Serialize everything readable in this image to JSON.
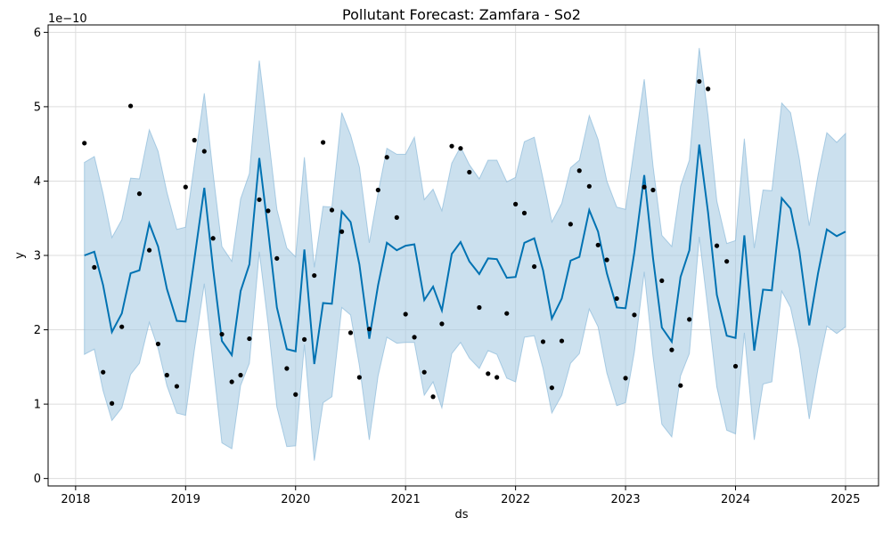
{
  "chart_data": {
    "type": "line",
    "title": "Pollutant Forecast: Zamfara - So2",
    "xlabel": "ds",
    "ylabel": "y",
    "y_scale_label": "1e−10",
    "xlim": [
      2017.75,
      2025.3
    ],
    "ylim": [
      -0.1,
      6.1
    ],
    "x_ticks": [
      2018,
      2019,
      2020,
      2021,
      2022,
      2023,
      2024,
      2025
    ],
    "x_tick_labels": [
      "2018",
      "2019",
      "2020",
      "2021",
      "2022",
      "2023",
      "2024",
      "2025"
    ],
    "y_ticks": [
      0,
      1,
      2,
      3,
      4,
      5,
      6
    ],
    "y_tick_labels": [
      "0",
      "1",
      "2",
      "3",
      "4",
      "5",
      "6"
    ],
    "grid": true,
    "colors": {
      "forecast": "#0072B2",
      "band": "#A9CCE3",
      "band_edge": "#7FB2D5",
      "actual": "#000000",
      "grid": "#dddddd"
    },
    "forecast": {
      "x": [
        2018.08,
        2018.17,
        2018.25,
        2018.33,
        2018.42,
        2018.5,
        2018.58,
        2018.67,
        2018.75,
        2018.83,
        2018.92,
        2019.0,
        2019.08,
        2019.17,
        2019.25,
        2019.33,
        2019.42,
        2019.5,
        2019.58,
        2019.67,
        2019.75,
        2019.83,
        2019.92,
        2020.0,
        2020.08,
        2020.17,
        2020.25,
        2020.33,
        2020.42,
        2020.5,
        2020.58,
        2020.67,
        2020.75,
        2020.83,
        2020.92,
        2021.0,
        2021.08,
        2021.17,
        2021.25,
        2021.33,
        2021.42,
        2021.5,
        2021.58,
        2021.67,
        2021.75,
        2021.83,
        2021.92,
        2022.0,
        2022.08,
        2022.17,
        2022.25,
        2022.33,
        2022.42,
        2022.5,
        2022.58,
        2022.67,
        2022.75,
        2022.83,
        2022.92,
        2023.0,
        2023.08,
        2023.17,
        2023.25,
        2023.33,
        2023.42,
        2023.5,
        2023.58,
        2023.67,
        2023.75,
        2023.83,
        2023.92,
        2024.0,
        2024.08,
        2024.17,
        2024.25,
        2024.33,
        2024.42,
        2024.5,
        2024.58,
        2024.67,
        2024.75,
        2024.83,
        2024.92,
        2025.0
      ],
      "yhat": [
        3.0,
        3.05,
        2.6,
        1.97,
        2.22,
        2.76,
        2.8,
        3.43,
        3.12,
        2.55,
        2.12,
        2.11,
        2.95,
        3.91,
        2.82,
        1.85,
        1.66,
        2.52,
        2.88,
        4.31,
        3.34,
        2.3,
        1.74,
        1.71,
        3.08,
        1.54,
        2.36,
        2.35,
        3.59,
        3.45,
        2.88,
        1.88,
        2.6,
        3.17,
        3.07,
        3.13,
        3.15,
        2.4,
        2.58,
        2.26,
        3.02,
        3.18,
        2.92,
        2.75,
        2.96,
        2.95,
        2.7,
        2.71,
        3.17,
        3.23,
        2.8,
        2.15,
        2.42,
        2.93,
        2.98,
        3.61,
        3.32,
        2.76,
        2.3,
        2.29,
        3.04,
        4.08,
        2.96,
        2.03,
        1.84,
        2.71,
        3.07,
        4.49,
        3.58,
        2.47,
        1.92,
        1.89,
        3.27,
        1.72,
        2.54,
        2.53,
        3.77,
        3.63,
        3.06,
        2.06,
        2.76,
        3.35,
        3.26,
        3.32
      ],
      "yhat_lower": [
        1.67,
        1.74,
        1.18,
        0.78,
        0.95,
        1.4,
        1.55,
        2.1,
        1.75,
        1.25,
        0.88,
        0.85,
        1.73,
        2.62,
        1.54,
        0.48,
        0.4,
        1.25,
        1.55,
        3.05,
        2.08,
        0.96,
        0.43,
        0.44,
        1.8,
        0.24,
        1.02,
        1.1,
        2.3,
        2.2,
        1.52,
        0.52,
        1.38,
        1.9,
        1.82,
        1.83,
        1.83,
        1.12,
        1.3,
        0.95,
        1.68,
        1.83,
        1.62,
        1.48,
        1.72,
        1.67,
        1.35,
        1.3,
        1.9,
        1.92,
        1.48,
        0.88,
        1.12,
        1.55,
        1.68,
        2.28,
        2.04,
        1.42,
        0.98,
        1.02,
        1.7,
        2.78,
        1.64,
        0.73,
        0.56,
        1.38,
        1.68,
        3.25,
        2.26,
        1.23,
        0.65,
        0.6,
        1.96,
        0.52,
        1.27,
        1.3,
        2.52,
        2.3,
        1.75,
        0.8,
        1.48,
        2.05,
        1.95,
        2.04
      ],
      "yhat_upper": [
        4.25,
        4.33,
        3.83,
        3.24,
        3.48,
        4.04,
        4.03,
        4.69,
        4.4,
        3.85,
        3.35,
        3.38,
        4.23,
        5.18,
        4.1,
        3.12,
        2.92,
        3.76,
        4.1,
        5.62,
        4.64,
        3.62,
        3.1,
        2.98,
        4.32,
        2.84,
        3.66,
        3.65,
        4.92,
        4.62,
        4.19,
        3.17,
        3.84,
        4.44,
        4.36,
        4.36,
        4.59,
        3.75,
        3.89,
        3.6,
        4.24,
        4.46,
        4.22,
        4.03,
        4.28,
        4.28,
        3.99,
        4.05,
        4.53,
        4.59,
        4.03,
        3.45,
        3.7,
        4.18,
        4.28,
        4.88,
        4.56,
        4.0,
        3.65,
        3.62,
        4.45,
        5.37,
        4.2,
        3.27,
        3.12,
        3.93,
        4.28,
        5.79,
        4.88,
        3.73,
        3.16,
        3.2,
        4.57,
        3.1,
        3.88,
        3.87,
        5.05,
        4.92,
        4.3,
        3.4,
        4.08,
        4.65,
        4.52,
        4.64
      ]
    },
    "actual": {
      "x": [
        2018.08,
        2018.17,
        2018.25,
        2018.33,
        2018.42,
        2018.5,
        2018.58,
        2018.67,
        2018.75,
        2018.83,
        2018.92,
        2019.0,
        2019.08,
        2019.17,
        2019.25,
        2019.33,
        2019.42,
        2019.5,
        2019.58,
        2019.67,
        2019.75,
        2019.83,
        2019.92,
        2020.0,
        2020.08,
        2020.17,
        2020.25,
        2020.33,
        2020.42,
        2020.5,
        2020.58,
        2020.67,
        2020.75,
        2020.83,
        2020.92,
        2021.0,
        2021.08,
        2021.17,
        2021.25,
        2021.33,
        2021.42,
        2021.5,
        2021.58,
        2021.67,
        2021.75,
        2021.83,
        2021.92,
        2022.0,
        2022.08,
        2022.17,
        2022.25,
        2022.33,
        2022.42,
        2022.5,
        2022.58,
        2022.67,
        2022.75,
        2022.83,
        2022.92,
        2023.0,
        2023.08,
        2023.17,
        2023.25,
        2023.33,
        2023.42,
        2023.5,
        2023.58,
        2023.67,
        2023.75,
        2023.83,
        2023.92,
        2024.0
      ],
      "y": [
        4.51,
        2.84,
        1.43,
        1.01,
        2.04,
        5.01,
        3.83,
        3.07,
        1.81,
        1.39,
        1.24,
        3.92,
        4.55,
        4.4,
        3.23,
        1.94,
        1.3,
        1.39,
        1.88,
        3.75,
        3.6,
        2.96,
        1.48,
        1.13,
        1.87,
        2.73,
        4.52,
        3.61,
        3.32,
        1.96,
        1.36,
        2.01,
        3.88,
        4.32,
        3.51,
        2.21,
        1.9,
        1.43,
        1.1,
        2.08,
        4.47,
        4.44,
        4.12,
        2.3,
        1.41,
        1.36,
        2.22,
        3.69,
        3.57,
        2.85,
        1.84,
        1.22,
        1.85,
        3.42,
        4.14,
        3.93,
        3.14,
        2.94,
        2.42,
        1.35,
        2.2,
        3.92,
        3.88,
        2.66,
        1.73,
        1.25,
        2.14,
        5.34,
        5.24,
        3.13,
        2.92,
        1.51
      ]
    }
  }
}
